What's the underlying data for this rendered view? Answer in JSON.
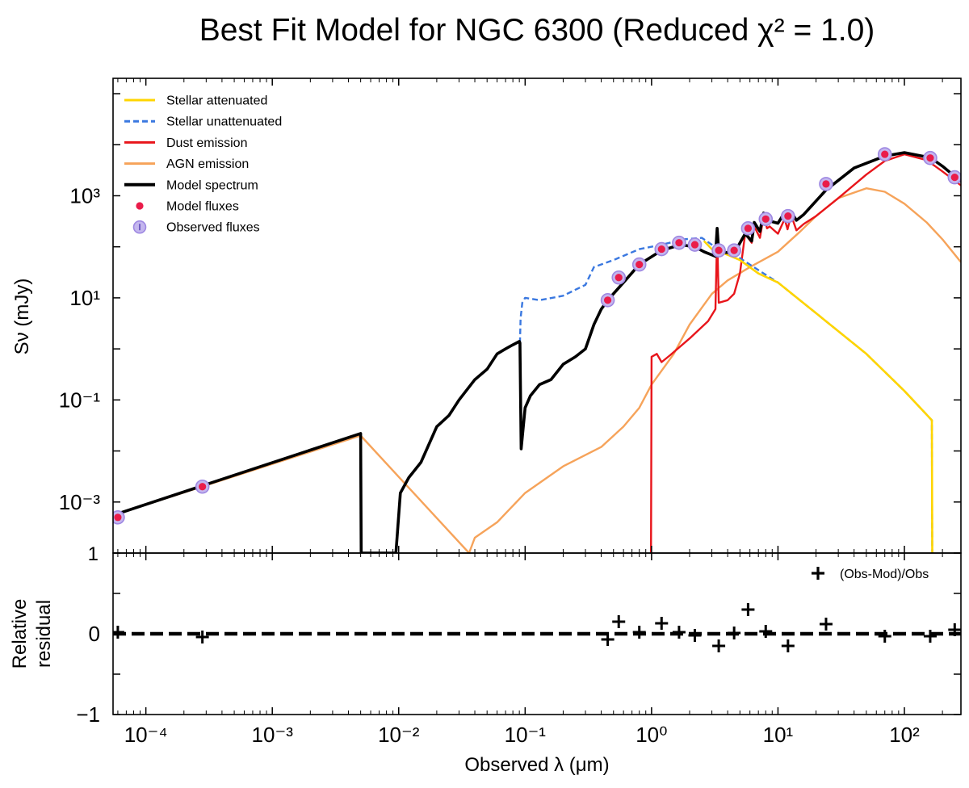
{
  "chart_data": {
    "type": "line",
    "title": "Best Fit Model for NGC 6300 (Reduced χ² = 1.0)",
    "xlabel": "Observed λ (μm)",
    "xscale": "log",
    "xlim": [
      5.5e-05,
      280
    ],
    "x_ticks": [
      {
        "value": 0.0001,
        "label": "10⁻⁴"
      },
      {
        "value": 0.001,
        "label": "10⁻³"
      },
      {
        "value": 0.01,
        "label": "10⁻²"
      },
      {
        "value": 0.1,
        "label": "10⁻¹"
      },
      {
        "value": 1,
        "label": "10⁰"
      },
      {
        "value": 10,
        "label": "10¹"
      },
      {
        "value": 100,
        "label": "10²"
      }
    ],
    "top_panel": {
      "ylabel": "Sν (mJy)",
      "yscale": "log",
      "ylim": [
        0.0001,
        200000.0
      ],
      "y_ticks": [
        {
          "value": 0.001,
          "label": "10⁻³"
        },
        {
          "value": 0.1,
          "label": "10⁻¹"
        },
        {
          "value": 10,
          "label": "10¹"
        },
        {
          "value": 1000,
          "label": "10³"
        }
      ],
      "bottom_tick_label": "1",
      "legend_position": "top-left",
      "series": [
        {
          "name": "Stellar attenuated",
          "color": "#ffd500",
          "style": "solid",
          "points": [
            [
              2.6,
              130
            ],
            [
              3,
              90
            ],
            [
              4,
              70
            ],
            [
              5,
              55
            ],
            [
              7,
              30
            ],
            [
              10,
              20
            ],
            [
              20,
              5
            ],
            [
              50,
              0.8
            ],
            [
              100,
              0.15
            ],
            [
              165,
              0.04
            ],
            [
              166,
              0.0001
            ]
          ]
        },
        {
          "name": "Stellar unattenuated",
          "color": "#3a78e0",
          "style": "dashed",
          "points": [
            [
              0.091,
              1.3
            ],
            [
              0.092,
              4
            ],
            [
              0.095,
              8
            ],
            [
              0.1,
              10
            ],
            [
              0.13,
              9
            ],
            [
              0.2,
              11
            ],
            [
              0.3,
              18
            ],
            [
              0.35,
              40
            ],
            [
              0.5,
              55
            ],
            [
              0.8,
              90
            ],
            [
              1.2,
              110
            ],
            [
              1.8,
              140
            ],
            [
              2.5,
              150
            ],
            [
              3,
              110
            ],
            [
              4,
              75
            ],
            [
              5,
              60
            ],
            [
              7,
              35
            ],
            [
              10,
              20
            ],
            [
              20,
              5
            ],
            [
              50,
              0.8
            ],
            [
              100,
              0.15
            ],
            [
              165,
              0.04
            ],
            [
              166,
              0.0001
            ]
          ]
        },
        {
          "name": "Dust emission",
          "color": "#e8151b",
          "style": "solid",
          "points": [
            [
              0.99,
              0.0001
            ],
            [
              1.0,
              0.7
            ],
            [
              1.1,
              0.8
            ],
            [
              1.2,
              0.55
            ],
            [
              1.4,
              0.75
            ],
            [
              2,
              1.6
            ],
            [
              2.8,
              3.5
            ],
            [
              3.2,
              6
            ],
            [
              3.3,
              180
            ],
            [
              3.4,
              8
            ],
            [
              4,
              9
            ],
            [
              4.5,
              12
            ],
            [
              5,
              30
            ],
            [
              5.5,
              180
            ],
            [
              6.2,
              120
            ],
            [
              6.5,
              250
            ],
            [
              7.2,
              150
            ],
            [
              7.7,
              400
            ],
            [
              8.2,
              230
            ],
            [
              8.6,
              250
            ],
            [
              10,
              180
            ],
            [
              11.3,
              350
            ],
            [
              11.9,
              220
            ],
            [
              12.7,
              420
            ],
            [
              14,
              210
            ],
            [
              16,
              280
            ],
            [
              20,
              400
            ],
            [
              30,
              900
            ],
            [
              50,
              2600
            ],
            [
              70,
              4800
            ],
            [
              100,
              6500
            ],
            [
              150,
              5000
            ],
            [
              200,
              3000
            ],
            [
              280,
              1600
            ]
          ]
        },
        {
          "name": "AGN emission",
          "color": "#f6a35a",
          "style": "solid",
          "points": [
            [
              5.5e-05,
              0.00055
            ],
            [
              0.005,
              0.02
            ],
            [
              0.036,
              0.0001
            ],
            [
              0.04,
              0.0002
            ],
            [
              0.06,
              0.0004
            ],
            [
              0.1,
              0.0015
            ],
            [
              0.2,
              0.005
            ],
            [
              0.4,
              0.012
            ],
            [
              0.6,
              0.03
            ],
            [
              0.8,
              0.07
            ],
            [
              1,
              0.2
            ],
            [
              1.5,
              0.8
            ],
            [
              2,
              3
            ],
            [
              3,
              12
            ],
            [
              4,
              22
            ],
            [
              6,
              40
            ],
            [
              10,
              80
            ],
            [
              15,
              200
            ],
            [
              20,
              400
            ],
            [
              30,
              900
            ],
            [
              50,
              1400
            ],
            [
              70,
              1200
            ],
            [
              100,
              700
            ],
            [
              150,
              300
            ],
            [
              200,
              140
            ],
            [
              280,
              50
            ]
          ]
        },
        {
          "name": "Model spectrum",
          "color": "#000000",
          "style": "solid",
          "points": [
            [
              5.5e-05,
              0.00055
            ],
            [
              0.005,
              0.022
            ],
            [
              0.00505,
              0.0001
            ],
            [
              0.0095,
              0.0001
            ],
            [
              0.0103,
              0.0015
            ],
            [
              0.012,
              0.003
            ],
            [
              0.015,
              0.006
            ],
            [
              0.02,
              0.03
            ],
            [
              0.025,
              0.05
            ],
            [
              0.03,
              0.1
            ],
            [
              0.04,
              0.25
            ],
            [
              0.05,
              0.4
            ],
            [
              0.06,
              0.8
            ],
            [
              0.07,
              1.0
            ],
            [
              0.08,
              1.2
            ],
            [
              0.09,
              1.4
            ],
            [
              0.091,
              1.3
            ],
            [
              0.093,
              0.011
            ],
            [
              0.1,
              0.07
            ],
            [
              0.11,
              0.12
            ],
            [
              0.13,
              0.2
            ],
            [
              0.16,
              0.25
            ],
            [
              0.2,
              0.5
            ],
            [
              0.25,
              0.7
            ],
            [
              0.3,
              1.0
            ],
            [
              0.35,
              3
            ],
            [
              0.4,
              6
            ],
            [
              0.45,
              9
            ],
            [
              0.6,
              20
            ],
            [
              0.8,
              45
            ],
            [
              1.2,
              85
            ],
            [
              1.7,
              110
            ],
            [
              2.2,
              100
            ],
            [
              2.6,
              80
            ],
            [
              3.2,
              65
            ],
            [
              3.3,
              230
            ],
            [
              3.4,
              80
            ],
            [
              4.5,
              75
            ],
            [
              5.5,
              180
            ],
            [
              6.2,
              130
            ],
            [
              6.5,
              300
            ],
            [
              7.2,
              200
            ],
            [
              7.7,
              460
            ],
            [
              8.2,
              330
            ],
            [
              10,
              290
            ],
            [
              11.3,
              470
            ],
            [
              12.7,
              480
            ],
            [
              14,
              330
            ],
            [
              16,
              430
            ],
            [
              24,
              1300
            ],
            [
              40,
              3500
            ],
            [
              70,
              6000
            ],
            [
              100,
              7000
            ],
            [
              160,
              5600
            ],
            [
              200,
              3800
            ],
            [
              280,
              1900
            ]
          ]
        }
      ],
      "model_fluxes": [
        [
          6e-05,
          0.0005
        ],
        [
          0.00028,
          0.002
        ],
        [
          0.45,
          9
        ],
        [
          0.55,
          25
        ],
        [
          0.8,
          45
        ],
        [
          1.2,
          90
        ],
        [
          1.65,
          120
        ],
        [
          2.2,
          110
        ],
        [
          3.4,
          85
        ],
        [
          4.5,
          85
        ],
        [
          5.8,
          230
        ],
        [
          8,
          350
        ],
        [
          12,
          400
        ],
        [
          24,
          1700
        ],
        [
          70,
          6500
        ],
        [
          160,
          5500
        ],
        [
          250,
          2300
        ]
      ],
      "observed_fluxes": [
        [
          6e-05,
          0.0005
        ],
        [
          0.00028,
          0.002
        ],
        [
          0.45,
          9
        ],
        [
          0.55,
          25
        ],
        [
          0.8,
          45
        ],
        [
          1.2,
          90
        ],
        [
          1.65,
          120
        ],
        [
          2.2,
          110
        ],
        [
          3.4,
          85
        ],
        [
          4.5,
          85
        ],
        [
          5.8,
          230
        ],
        [
          8,
          350
        ],
        [
          12,
          400
        ],
        [
          24,
          1700
        ],
        [
          70,
          6500
        ],
        [
          160,
          5500
        ],
        [
          250,
          2300
        ]
      ]
    },
    "bottom_panel": {
      "ylabel": "Relative residual",
      "ylim": [
        -1,
        1
      ],
      "y_ticks": [
        {
          "value": 0,
          "label": "0"
        },
        {
          "value": -1,
          "label": "−1"
        }
      ],
      "legend_label": "(Obs-Mod)/Obs",
      "legend_position": "top-right",
      "zero_line": true,
      "residuals": [
        [
          6e-05,
          0.02
        ],
        [
          0.00028,
          -0.04
        ],
        [
          0.45,
          -0.07
        ],
        [
          0.55,
          0.15
        ],
        [
          0.8,
          0.02
        ],
        [
          1.2,
          0.13
        ],
        [
          1.65,
          0.02
        ],
        [
          2.2,
          -0.02
        ],
        [
          3.4,
          -0.15
        ],
        [
          4.5,
          0.01
        ],
        [
          5.8,
          0.3
        ],
        [
          8,
          0.03
        ],
        [
          12,
          -0.15
        ],
        [
          24,
          0.12
        ],
        [
          70,
          -0.03
        ],
        [
          160,
          -0.03
        ],
        [
          250,
          0.05
        ]
      ]
    }
  }
}
